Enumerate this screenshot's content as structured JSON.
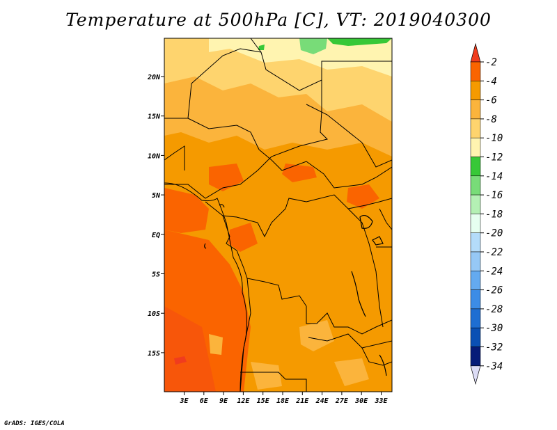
{
  "title": "Temperature at 500hPa [C], VT: 2019040300",
  "credit": "GrADS: IGES/COLA",
  "map": {
    "variable": "Temperature at 500hPa",
    "units": "C",
    "valid_time": "2019040300",
    "lon_ticks": [
      "3E",
      "6E",
      "9E",
      "12E",
      "15E",
      "18E",
      "21E",
      "24E",
      "27E",
      "30E",
      "33E"
    ],
    "lat_ticks": [
      "20N",
      "15N",
      "10N",
      "5N",
      "EQ",
      "5S",
      "10S",
      "15S"
    ]
  },
  "colorbar": {
    "labels": [
      "-2",
      "-4",
      "-6",
      "-8",
      "-10",
      "-12",
      "-14",
      "-16",
      "-18",
      "-20",
      "-22",
      "-24",
      "-26",
      "-28",
      "-30",
      "-32",
      "-34"
    ],
    "colors": [
      "#f03c1e",
      "#fa6400",
      "#f59a00",
      "#fbb43c",
      "#fed46e",
      "#fff4b0",
      "#37c837",
      "#78dc78",
      "#b4f0b4",
      "#e6fff0",
      "#b4dcfa",
      "#96c8f5",
      "#64aaf0",
      "#3c8ce6",
      "#1e6ed2",
      "#0a50b4",
      "#061c78",
      "#dcdcf5"
    ]
  }
}
